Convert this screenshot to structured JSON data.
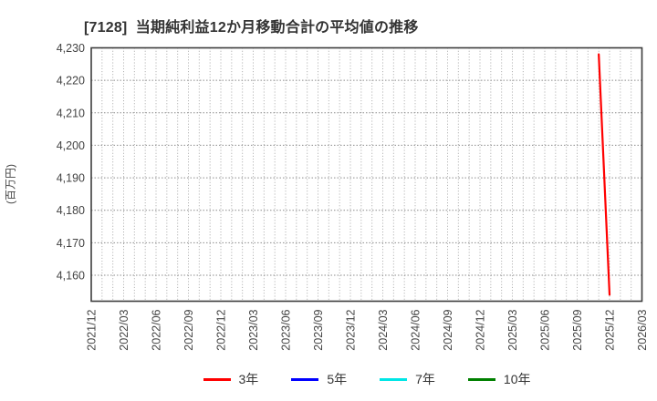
{
  "chart_data": {
    "type": "line",
    "title": "[7128]  当期純利益12か月移動合計の平均値の推移",
    "ylabel": "(百万円)",
    "ylim": [
      4152,
      4230
    ],
    "y_ticks": [
      4160,
      4170,
      4180,
      4190,
      4200,
      4210,
      4220,
      4230
    ],
    "x_tick_labels": [
      "2021/12",
      "2022/03",
      "2022/06",
      "2022/09",
      "2022/12",
      "2023/03",
      "2023/06",
      "2023/09",
      "2023/12",
      "2024/03",
      "2024/06",
      "2024/09",
      "2024/12",
      "2025/03",
      "2025/06",
      "2025/09",
      "2025/12",
      "2026/03"
    ],
    "x_range_months": [
      "2021/12",
      "2026/03"
    ],
    "minor_grid": "monthly",
    "grid": true,
    "legend_position": "bottom",
    "series": [
      {
        "name": "3年",
        "color": "#ff0000",
        "points": [
          [
            "2025/11",
            4228
          ],
          [
            "2025/12",
            4154
          ]
        ]
      },
      {
        "name": "5年",
        "color": "#0000ff",
        "points": []
      },
      {
        "name": "7年",
        "color": "#00e6e6",
        "points": []
      },
      {
        "name": "10年",
        "color": "#008000",
        "points": []
      }
    ],
    "colors": {
      "border": "#3d3d3d",
      "grid_major": "#8c8c8c",
      "grid_minor": "#a8a8a8",
      "tick_text": "#444444",
      "title_text": "#333333"
    }
  }
}
